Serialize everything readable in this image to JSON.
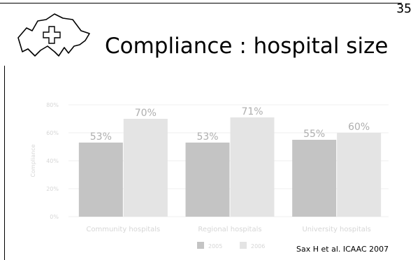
{
  "slide": {
    "number": "35",
    "title": "Compliance : hospital size",
    "citation": "Sax H et al. ICAAC 2007"
  },
  "colors": {
    "series_2005": "#c4c4c4",
    "series_2006": "#e4e4e4",
    "text_faint": "#d6d6d6",
    "data_label": "#aeaeae"
  },
  "chart_data": {
    "type": "bar",
    "categories": [
      "Community hospitals",
      "Regional hospitals",
      "University hospitals"
    ],
    "series": [
      {
        "name": "2005",
        "values": [
          53,
          53,
          55
        ],
        "labels": [
          "53%",
          "53%",
          "55%"
        ]
      },
      {
        "name": "2006",
        "values": [
          70,
          71,
          60
        ],
        "labels": [
          "70%",
          "71%",
          "60%"
        ]
      }
    ],
    "ylabel": "Compliance",
    "ylim": [
      0,
      80
    ],
    "yticks": [
      "0%",
      "20%",
      "40%",
      "60%",
      "80%"
    ],
    "grid": true,
    "legend": "bottom"
  }
}
